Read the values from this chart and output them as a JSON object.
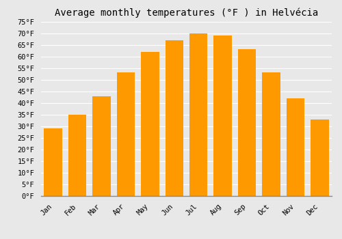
{
  "title": "Average monthly temperatures (°F ) in Helvécia",
  "months": [
    "Jan",
    "Feb",
    "Mar",
    "Apr",
    "May",
    "Jun",
    "Jul",
    "Aug",
    "Sep",
    "Oct",
    "Nov",
    "Dec"
  ],
  "values": [
    29,
    35,
    43,
    53,
    62,
    67,
    70,
    69,
    63,
    53,
    42,
    33
  ],
  "bar_color_top": "#FFB833",
  "bar_color_bot": "#FF9900",
  "ylim": [
    0,
    75
  ],
  "yticks": [
    0,
    5,
    10,
    15,
    20,
    25,
    30,
    35,
    40,
    45,
    50,
    55,
    60,
    65,
    70,
    75
  ],
  "ytick_labels": [
    "0°F",
    "5°F",
    "10°F",
    "15°F",
    "20°F",
    "25°F",
    "30°F",
    "35°F",
    "40°F",
    "45°F",
    "50°F",
    "55°F",
    "60°F",
    "65°F",
    "70°F",
    "75°F"
  ],
  "background_color": "#e8e8e8",
  "grid_color": "#ffffff",
  "title_fontsize": 10,
  "tick_fontsize": 7.5,
  "font_family": "monospace",
  "bar_width": 0.75
}
